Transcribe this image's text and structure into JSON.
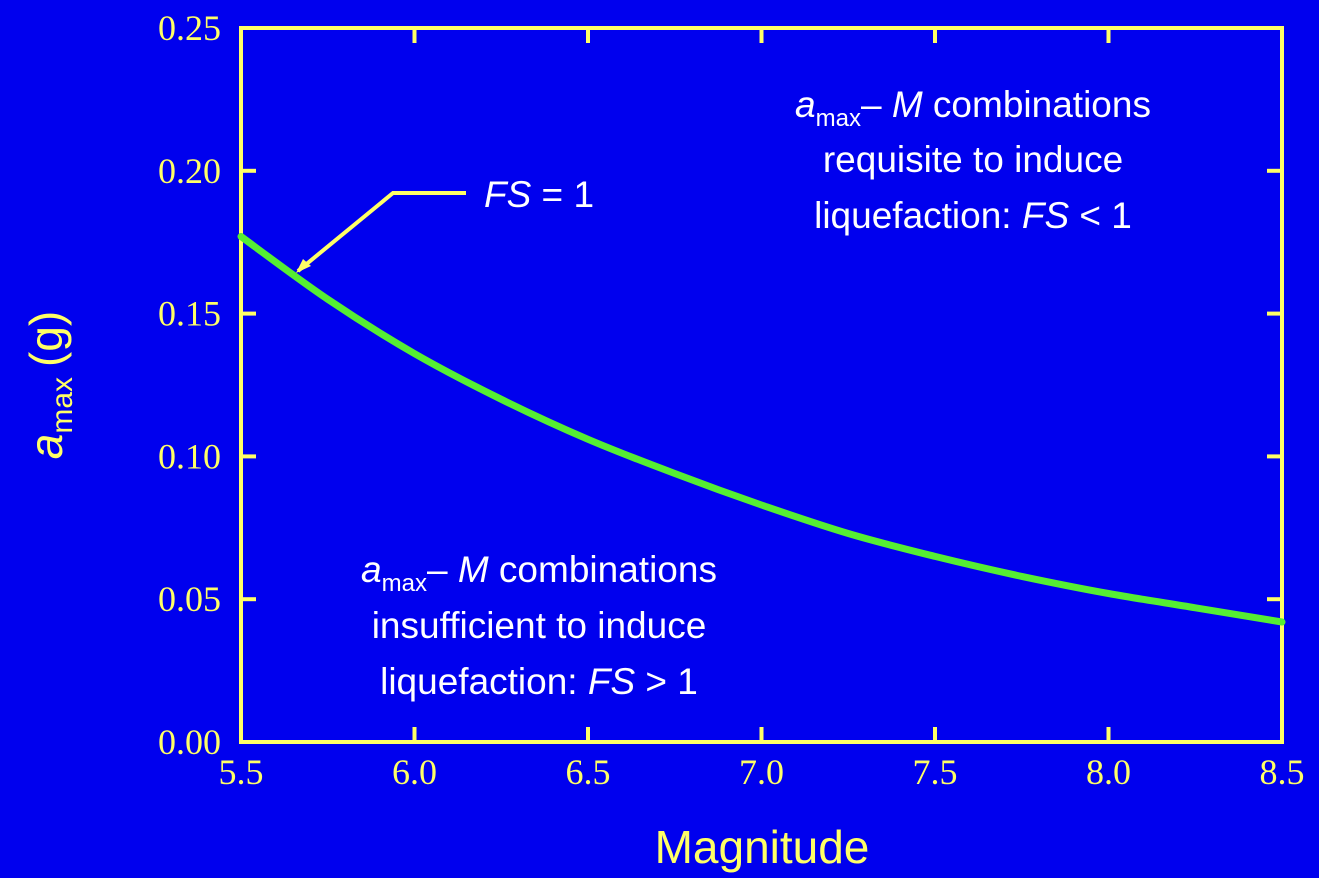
{
  "chart_data": {
    "type": "line",
    "title": "",
    "xlabel": "Magnitude",
    "ylabel": {
      "symbol": "a",
      "subscript": "max",
      "unit": "(g)"
    },
    "xlim": [
      5.5,
      8.5
    ],
    "ylim": [
      0.0,
      0.25
    ],
    "x_ticks": [
      "5.5",
      "6.0",
      "6.5",
      "7.0",
      "7.5",
      "8.0",
      "8.5"
    ],
    "y_ticks": [
      "0.00",
      "0.05",
      "0.10",
      "0.15",
      "0.20",
      "0.25"
    ],
    "grid": false,
    "series": [
      {
        "name": "FS = 1",
        "color": "#55ee33",
        "x": [
          5.5,
          5.75,
          6.0,
          6.25,
          6.5,
          6.75,
          7.0,
          7.25,
          7.5,
          7.75,
          8.0,
          8.25,
          8.5
        ],
        "y": [
          0.177,
          0.155,
          0.136,
          0.12,
          0.106,
          0.094,
          0.083,
          0.073,
          0.065,
          0.058,
          0.052,
          0.047,
          0.042
        ]
      }
    ],
    "annotations": {
      "curve_label": {
        "italic": "FS",
        "rest": " = 1"
      },
      "upper": {
        "line1": {
          "symbol": "a",
          "subscript": "max",
          "dash": "– ",
          "italic": "M",
          "rest": " combinations"
        },
        "line2": "requisite to induce",
        "line3": {
          "text": "liquefaction: ",
          "italic": "FS",
          "rest": " < 1"
        }
      },
      "lower": {
        "line1": {
          "symbol": "a",
          "subscript": "max",
          "dash": "– ",
          "italic": "M",
          "rest": " combinations"
        },
        "line2": "insufficient to induce",
        "line3": {
          "text": "liquefaction: ",
          "italic": "FS",
          "rest": " > 1"
        }
      }
    },
    "colors": {
      "background": "#0000ee",
      "axes": "#ffff66",
      "curve": "#55ee33",
      "annotation_text": "#ffffff"
    }
  }
}
